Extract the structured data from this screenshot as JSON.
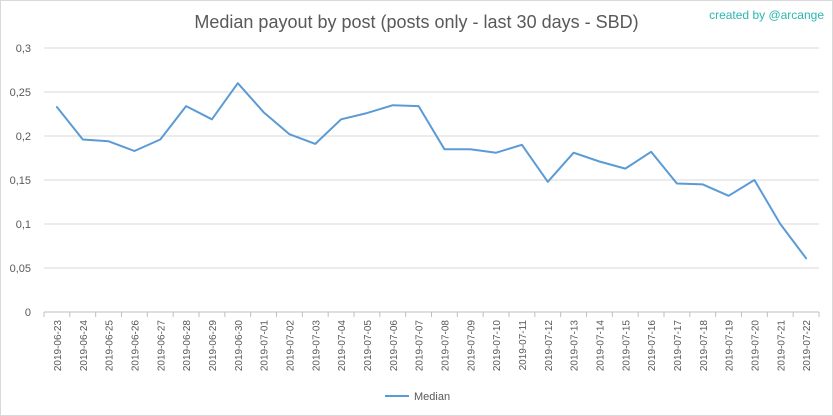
{
  "chart_data": {
    "type": "line",
    "title": "Median payout by post (posts only - last 30 days - SBD)",
    "credit": "created by @arcange",
    "xlabel": "",
    "ylabel": "",
    "ylim": [
      0,
      0.3
    ],
    "yticks": [
      "0",
      "0,05",
      "0,1",
      "0,15",
      "0,2",
      "0,25",
      "0,3"
    ],
    "grid": true,
    "legend_position": "bottom",
    "categories": [
      "2019-06-23",
      "2019-06-24",
      "2019-06-25",
      "2019-06-26",
      "2019-06-27",
      "2019-06-28",
      "2019-06-29",
      "2019-06-30",
      "2019-07-01",
      "2019-07-02",
      "2019-07-03",
      "2019-07-04",
      "2019-07-05",
      "2019-07-06",
      "2019-07-07",
      "2019-07-08",
      "2019-07-09",
      "2019-07-10",
      "2019-07-11",
      "2019-07-12",
      "2019-07-13",
      "2019-07-14",
      "2019-07-15",
      "2019-07-16",
      "2019-07-17",
      "2019-07-18",
      "2019-07-19",
      "2019-07-20",
      "2019-07-21",
      "2019-07-22"
    ],
    "series": [
      {
        "name": "Median",
        "color": "#5b9bd5",
        "values": [
          0.233,
          0.196,
          0.194,
          0.183,
          0.196,
          0.234,
          0.219,
          0.26,
          0.227,
          0.202,
          0.191,
          0.219,
          0.226,
          0.235,
          0.234,
          0.185,
          0.185,
          0.181,
          0.19,
          0.148,
          0.181,
          0.171,
          0.163,
          0.182,
          0.146,
          0.145,
          0.132,
          0.15,
          0.1,
          0.061
        ]
      }
    ]
  }
}
